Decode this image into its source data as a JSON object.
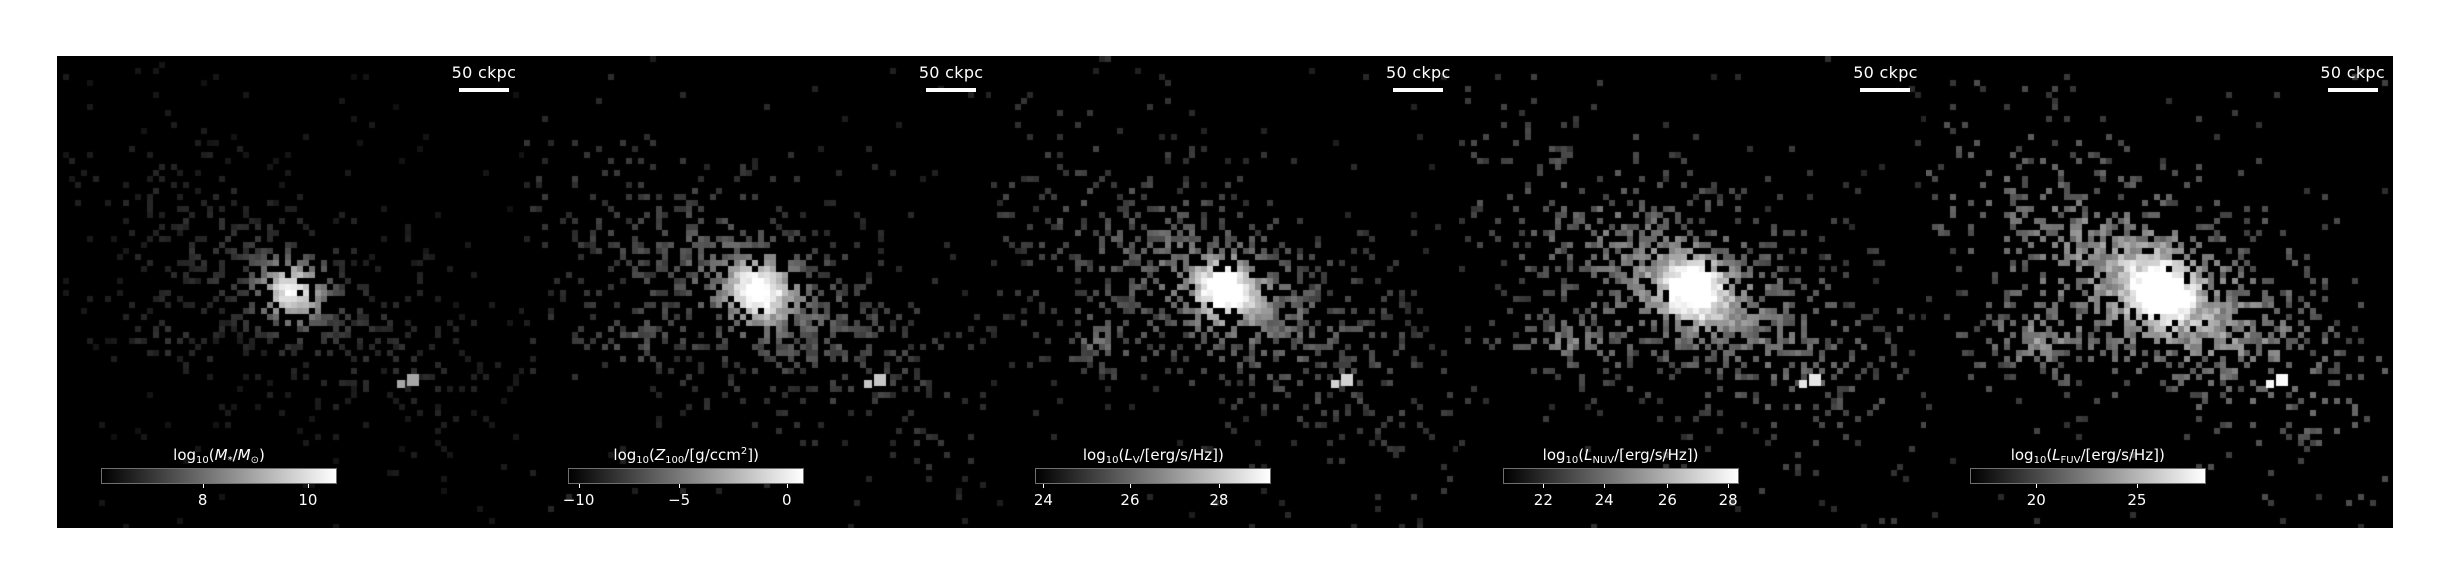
{
  "panels": [
    {
      "scale_label": "50 ckpc",
      "cbar": {
        "pre": "log",
        "sub": "10",
        "mid": "(",
        "sym": "M",
        "symsub": "*",
        "sep": "/",
        "unit": "M",
        "unitsub": "⊙",
        "unitsup": "",
        "post": ")",
        "ticks": [
          "8",
          "10"
        ],
        "tick_pos": [
          0.43,
          0.88
        ]
      },
      "render": {
        "brightness": 0.35,
        "fill": 0.45
      }
    },
    {
      "scale_label": "50 ckpc",
      "cbar": {
        "pre": "log",
        "sub": "10",
        "mid": "(",
        "sym": "Z",
        "symsub": "100",
        "sep": "/[g/ccm",
        "unit": "",
        "unitsub": "",
        "unitsup": "2",
        "post": "])",
        "ticks": [
          "−10",
          "−5",
          "0"
        ],
        "tick_pos": [
          0.04,
          0.47,
          0.93
        ]
      },
      "render": {
        "brightness": 0.6,
        "fill": 0.6
      }
    },
    {
      "scale_label": "50 ckpc",
      "cbar": {
        "pre": "log",
        "sub": "10",
        "mid": "(",
        "sym": "L",
        "symsub": "V",
        "sep": "/[erg/s/Hz])",
        "unit": "",
        "unitsub": "",
        "unitsup": "",
        "post": "",
        "ticks": [
          "24",
          "26",
          "28"
        ],
        "tick_pos": [
          0.03,
          0.4,
          0.78
        ]
      },
      "render": {
        "brightness": 0.7,
        "fill": 0.65
      }
    },
    {
      "scale_label": "50 ckpc",
      "cbar": {
        "pre": "log",
        "sub": "10",
        "mid": "(",
        "sym": "L",
        "symsub": "NUV",
        "sep": "/[erg/s/Hz])",
        "unit": "",
        "unitsub": "",
        "unitsup": "",
        "post": "",
        "ticks": [
          "22",
          "24",
          "26",
          "28"
        ],
        "tick_pos": [
          0.17,
          0.43,
          0.7,
          0.96
        ]
      },
      "render": {
        "brightness": 0.85,
        "fill": 0.72
      }
    },
    {
      "scale_label": "50 ckpc",
      "cbar": {
        "pre": "log",
        "sub": "10",
        "mid": "(",
        "sym": "L",
        "symsub": "FUV",
        "sep": "/[erg/s/Hz])",
        "unit": "",
        "unitsub": "",
        "unitsup": "",
        "post": "",
        "ticks": [
          "20",
          "25"
        ],
        "tick_pos": [
          0.28,
          0.71
        ]
      },
      "render": {
        "brightness": 1.0,
        "fill": 0.8
      }
    }
  ]
}
